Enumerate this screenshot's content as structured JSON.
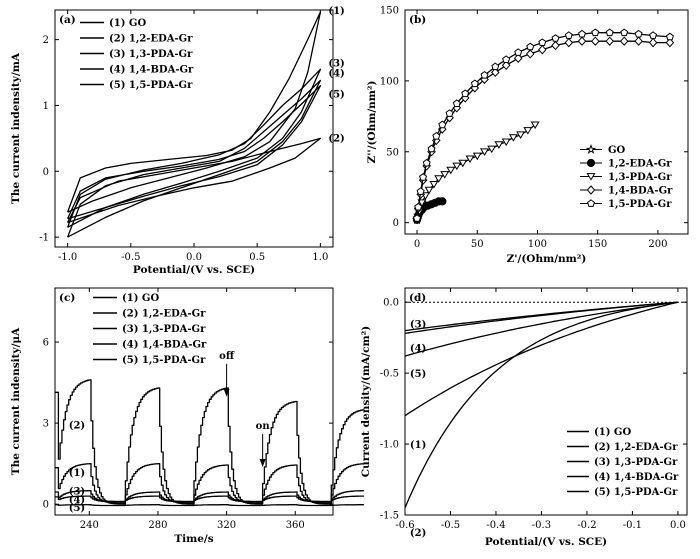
{
  "chart_data": [
    {
      "type": "line",
      "panel_label": "(a)",
      "xlabel": "Potential/(V vs. SCE)",
      "ylabel": "The current indensity/mA",
      "xlim": [
        -1.1,
        1.1
      ],
      "ylim": [
        -1.15,
        2.45
      ],
      "xticks": [
        "-1.0",
        "-0.5",
        "0.0",
        "0.5",
        "1.0"
      ],
      "yticks": [
        "-1",
        "0",
        "1",
        "2"
      ],
      "legend": [
        "(1) GO",
        "(2) 1,2-EDA-Gr",
        "(3) 1,3-PDA-Gr",
        "(4) 1,4-BDA-Gr",
        "(5) 1,5-PDA-Gr"
      ],
      "series": [
        {
          "name": "(1) GO",
          "end_label": "(1)",
          "upper": [
            [
              -1.0,
              -0.62
            ],
            [
              -0.9,
              -0.1
            ],
            [
              -0.7,
              0.05
            ],
            [
              -0.5,
              0.12
            ],
            [
              -0.2,
              0.18
            ],
            [
              0.1,
              0.24
            ],
            [
              0.3,
              0.32
            ],
            [
              0.45,
              0.5
            ],
            [
              0.6,
              0.9
            ],
            [
              0.75,
              1.4
            ],
            [
              0.9,
              2.0
            ],
            [
              1.0,
              2.42
            ]
          ],
          "lower": [
            [
              1.0,
              2.42
            ],
            [
              0.9,
              1.5
            ],
            [
              0.8,
              0.95
            ],
            [
              0.6,
              0.45
            ],
            [
              0.4,
              0.22
            ],
            [
              0.1,
              0.05
            ],
            [
              -0.2,
              -0.1
            ],
            [
              -0.5,
              -0.25
            ],
            [
              -0.8,
              -0.45
            ],
            [
              -1.0,
              -0.62
            ]
          ]
        },
        {
          "name": "(2) 1,2-EDA-Gr",
          "end_label": "(2)",
          "upper": [
            [
              -1.0,
              -0.78
            ],
            [
              -0.9,
              -0.4
            ],
            [
              -0.6,
              -0.15
            ],
            [
              -0.3,
              -0.05
            ],
            [
              0.0,
              0.05
            ],
            [
              0.3,
              0.15
            ],
            [
              0.5,
              0.25
            ],
            [
              0.7,
              0.35
            ],
            [
              0.85,
              0.42
            ],
            [
              1.0,
              0.5
            ]
          ],
          "lower": [
            [
              1.0,
              0.5
            ],
            [
              0.8,
              0.2
            ],
            [
              0.6,
              0.05
            ],
            [
              0.3,
              -0.15
            ],
            [
              0.0,
              -0.25
            ],
            [
              -0.3,
              -0.38
            ],
            [
              -0.6,
              -0.52
            ],
            [
              -0.85,
              -0.68
            ],
            [
              -1.0,
              -0.78
            ]
          ]
        },
        {
          "name": "(3) 1,3-PDA-Gr",
          "end_label": "(3)",
          "upper": [
            [
              -1.0,
              -0.85
            ],
            [
              -0.9,
              -0.35
            ],
            [
              -0.7,
              -0.12
            ],
            [
              -0.4,
              0.02
            ],
            [
              -0.1,
              0.12
            ],
            [
              0.2,
              0.25
            ],
            [
              0.4,
              0.42
            ],
            [
              0.55,
              0.7
            ],
            [
              0.7,
              1.0
            ],
            [
              0.85,
              1.25
            ],
            [
              1.0,
              1.55
            ]
          ],
          "lower": [
            [
              1.0,
              1.55
            ],
            [
              0.85,
              0.9
            ],
            [
              0.7,
              0.5
            ],
            [
              0.5,
              0.2
            ],
            [
              0.2,
              0.0
            ],
            [
              -0.1,
              -0.18
            ],
            [
              -0.4,
              -0.35
            ],
            [
              -0.7,
              -0.55
            ],
            [
              -1.0,
              -0.85
            ]
          ]
        },
        {
          "name": "(4) 1,4-BDA-Gr",
          "end_label": "(4)",
          "upper": [
            [
              -1.0,
              -1.0
            ],
            [
              -0.9,
              -0.5
            ],
            [
              -0.7,
              -0.22
            ],
            [
              -0.4,
              -0.05
            ],
            [
              -0.1,
              0.05
            ],
            [
              0.2,
              0.15
            ],
            [
              0.4,
              0.35
            ],
            [
              0.55,
              0.6
            ],
            [
              0.7,
              0.85
            ],
            [
              0.85,
              1.1
            ],
            [
              1.0,
              1.38
            ]
          ],
          "lower": [
            [
              1.0,
              1.38
            ],
            [
              0.85,
              0.8
            ],
            [
              0.7,
              0.45
            ],
            [
              0.5,
              0.15
            ],
            [
              0.2,
              -0.05
            ],
            [
              -0.1,
              -0.25
            ],
            [
              -0.4,
              -0.45
            ],
            [
              -0.7,
              -0.7
            ],
            [
              -1.0,
              -1.0
            ]
          ]
        },
        {
          "name": "(5) 1,5-PDA-Gr",
          "end_label": "(5)",
          "upper": [
            [
              -1.0,
              -0.72
            ],
            [
              -0.9,
              -0.3
            ],
            [
              -0.7,
              -0.1
            ],
            [
              -0.4,
              0.0
            ],
            [
              -0.1,
              0.08
            ],
            [
              0.2,
              0.18
            ],
            [
              0.4,
              0.3
            ],
            [
              0.55,
              0.5
            ],
            [
              0.7,
              0.75
            ],
            [
              0.85,
              1.02
            ],
            [
              1.0,
              1.3
            ]
          ],
          "lower": [
            [
              1.0,
              1.3
            ],
            [
              0.85,
              0.75
            ],
            [
              0.7,
              0.4
            ],
            [
              0.5,
              0.1
            ],
            [
              0.2,
              -0.08
            ],
            [
              -0.1,
              -0.22
            ],
            [
              -0.4,
              -0.38
            ],
            [
              -0.7,
              -0.55
            ],
            [
              -1.0,
              -0.72
            ]
          ]
        }
      ]
    },
    {
      "type": "scatter",
      "panel_label": "(b)",
      "xlabel": "Z'/(Ohm/nm²)",
      "ylabel": "Z''/(Ohm/nm²)",
      "xlim": [
        -10,
        225
      ],
      "ylim": [
        -8,
        150
      ],
      "xticks": [
        "0",
        "50",
        "100",
        "150",
        "200"
      ],
      "yticks": [
        "0",
        "50",
        "100",
        "150"
      ],
      "legend": [
        "GO",
        "1,2-EDA-Gr",
        "1,3-PDA-Gr",
        "1,4-BDA-Gr",
        "1,5-PDA-Gr"
      ],
      "series": [
        {
          "name": "GO",
          "marker": "star",
          "points": [
            [
              0,
              2
            ],
            [
              1,
              5
            ],
            [
              2,
              8
            ],
            [
              3,
              10
            ],
            [
              5,
              11
            ],
            [
              7,
              12
            ]
          ]
        },
        {
          "name": "1,2-EDA-Gr",
          "marker": "circle",
          "points": [
            [
              0,
              2
            ],
            [
              1,
              5
            ],
            [
              2,
              7
            ],
            [
              4,
              9
            ],
            [
              6,
              11
            ],
            [
              9,
              12
            ],
            [
              12,
              13
            ],
            [
              15,
              14
            ],
            [
              18,
              15
            ],
            [
              21,
              15
            ]
          ]
        },
        {
          "name": "1,3-PDA-Gr",
          "marker": "triangle-down",
          "points": [
            [
              0,
              2
            ],
            [
              2,
              8
            ],
            [
              4,
              14
            ],
            [
              7,
              19
            ],
            [
              10,
              23
            ],
            [
              14,
              27
            ],
            [
              18,
              31
            ],
            [
              23,
              34
            ],
            [
              28,
              37
            ],
            [
              33,
              40
            ],
            [
              38,
              42
            ],
            [
              44,
              45
            ],
            [
              50,
              47
            ],
            [
              56,
              50
            ],
            [
              62,
              52
            ],
            [
              68,
              55
            ],
            [
              74,
              57
            ],
            [
              80,
              60
            ],
            [
              86,
              62
            ],
            [
              92,
              65
            ],
            [
              98,
              69
            ]
          ]
        },
        {
          "name": "1,4-BDA-Gr",
          "marker": "diamond",
          "points": [
            [
              0,
              3
            ],
            [
              1,
              10
            ],
            [
              3,
              20
            ],
            [
              5,
              30
            ],
            [
              8,
              40
            ],
            [
              12,
              50
            ],
            [
              16,
              58
            ],
            [
              21,
              66
            ],
            [
              27,
              74
            ],
            [
              33,
              81
            ],
            [
              40,
              88
            ],
            [
              48,
              95
            ],
            [
              56,
              101
            ],
            [
              65,
              106
            ],
            [
              74,
              111
            ],
            [
              84,
              116
            ],
            [
              94,
              119
            ],
            [
              104,
              122
            ],
            [
              115,
              125
            ],
            [
              126,
              127
            ],
            [
              137,
              128
            ],
            [
              148,
              128
            ],
            [
              160,
              128
            ],
            [
              172,
              128
            ],
            [
              184,
              128
            ],
            [
              196,
              127
            ],
            [
              210,
              127
            ]
          ]
        },
        {
          "name": "1,5-PDA-Gr",
          "marker": "pentagon",
          "points": [
            [
              0,
              3
            ],
            [
              1,
              11
            ],
            [
              3,
              22
            ],
            [
              5,
              32
            ],
            [
              8,
              42
            ],
            [
              12,
              52
            ],
            [
              16,
              61
            ],
            [
              21,
              69
            ],
            [
              27,
              77
            ],
            [
              33,
              84
            ],
            [
              40,
              91
            ],
            [
              48,
              98
            ],
            [
              56,
              104
            ],
            [
              65,
              110
            ],
            [
              74,
              115
            ],
            [
              84,
              120
            ],
            [
              94,
              124
            ],
            [
              104,
              127
            ],
            [
              115,
              130
            ],
            [
              126,
              132
            ],
            [
              137,
              133
            ],
            [
              148,
              134
            ],
            [
              160,
              134
            ],
            [
              172,
              134
            ],
            [
              184,
              133
            ],
            [
              196,
              132
            ],
            [
              210,
              131
            ]
          ]
        }
      ]
    },
    {
      "type": "line",
      "panel_label": "(c)",
      "xlabel": "Time/s",
      "ylabel": "The current indensity/μA",
      "xlim": [
        220,
        382
      ],
      "ylim": [
        -0.4,
        8.0
      ],
      "xticks": [
        "240",
        "280",
        "320",
        "360"
      ],
      "yticks": [
        "0",
        "3",
        "6"
      ],
      "legend": [
        "(1) GO",
        "(2) 1,2-EDA-Gr",
        "(3) 1,3-PDA-Gr",
        "(4) 1,4-BDA-Gr",
        "(5) 1,5-PDA-Gr"
      ],
      "annotations": [
        {
          "text": "off",
          "x": 320,
          "y": 3.9
        },
        {
          "text": "on",
          "x": 341,
          "y": 1.3
        }
      ],
      "curve_labels": [
        {
          "text": "(1)",
          "x": 228,
          "y": 1.2
        },
        {
          "text": "(2)",
          "x": 228,
          "y": 2.95
        },
        {
          "text": "(3)",
          "x": 228,
          "y": 0.5
        },
        {
          "text": "(4)",
          "x": 228,
          "y": 0.2
        },
        {
          "text": "(5)",
          "x": 228,
          "y": -0.1
        }
      ],
      "photoresponse": {
        "period": 40,
        "on_duration": 20,
        "first_on": 220,
        "series": [
          {
            "name": "(1) GO",
            "baseline": 0.05,
            "peaks": [
              1.5,
              1.5,
              1.45,
              1.45,
              1.5
            ]
          },
          {
            "name": "(2) 1,2-EDA-Gr",
            "baseline": 0.0,
            "peaks": [
              4.6,
              4.3,
              4.3,
              3.8,
              3.5
            ]
          },
          {
            "name": "(3) 1,3-PDA-Gr",
            "baseline": 0.1,
            "peaks": [
              0.5,
              0.45,
              0.45,
              0.45,
              0.5
            ]
          },
          {
            "name": "(4) 1,4-BDA-Gr",
            "baseline": 0.1,
            "peaks": [
              0.3,
              0.3,
              0.3,
              0.3,
              0.3
            ]
          },
          {
            "name": "(5) 1,5-PDA-Gr",
            "baseline": -0.05,
            "peaks": [
              -0.02,
              -0.02,
              -0.02,
              -0.02,
              -0.02
            ]
          }
        ]
      }
    },
    {
      "type": "line",
      "panel_label": "(d)",
      "xlabel": "Potential/(V vs. SCE)",
      "ylabel": "Current density/(mA/cm²)",
      "xlim": [
        -0.6,
        0.02
      ],
      "ylim": [
        -1.5,
        0.1
      ],
      "xticks": [
        "-0.6",
        "-0.5",
        "-0.4",
        "-0.3",
        "-0.2",
        "-0.1",
        "0.0"
      ],
      "yticks": [
        "-1.5",
        "-1.0",
        "-0.5",
        "0.0"
      ],
      "reference_line": 0.0,
      "legend": [
        "(1) GO",
        "(2) 1,2-EDA-Gr",
        "(3) 1,3-PDA-Gr",
        "(4) 1,4-BDA-Gr",
        "(5) 1,5-PDA-Gr"
      ],
      "series": [
        {
          "name": "(1) GO",
          "end_label": "(1)",
          "j_at_minus_0_6": -0.8,
          "shape": 1.0
        },
        {
          "name": "(2) 1,2-EDA-Gr",
          "end_label": "(2)",
          "j_at_minus_0_6": -1.45,
          "shape": 3.0
        },
        {
          "name": "(3) 1,3-PDA-Gr",
          "end_label": "(3)",
          "j_at_minus_0_6": -0.22,
          "shape": 0.6
        },
        {
          "name": "(4) 1,4-BDA-Gr",
          "end_label": "(4)",
          "j_at_minus_0_6": -0.38,
          "shape": 0.8
        },
        {
          "name": "(5) 1,5-PDA-Gr",
          "end_label": "(5)",
          "j_at_minus_0_6": -0.2,
          "shape": 0.5
        }
      ]
    }
  ]
}
